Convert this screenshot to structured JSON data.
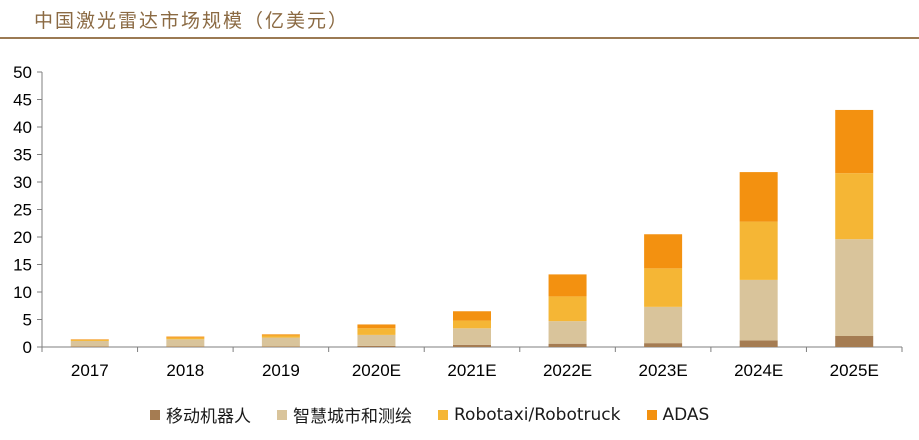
{
  "header": {
    "title": "中国激光雷达市场规模（亿美元）"
  },
  "colors": {
    "header_text": "#8b6a43",
    "header_rule": "#9b7a53",
    "axis": "#7f7f7f"
  },
  "chart_data": {
    "type": "bar",
    "stacked": true,
    "title": "中国激光雷达市场规模（亿美元）",
    "xlabel": "",
    "ylabel": "",
    "ylim": [
      0,
      50
    ],
    "yticks": [
      0,
      5,
      10,
      15,
      20,
      25,
      30,
      35,
      40,
      45,
      50
    ],
    "grid": false,
    "legend_position": "bottom",
    "categories": [
      "2017",
      "2018",
      "2019",
      "2020E",
      "2021E",
      "2022E",
      "2023E",
      "2024E",
      "2025E"
    ],
    "series": [
      {
        "name": "移动机器人",
        "color": "#a57c52",
        "values": [
          0.1,
          0.1,
          0.1,
          0.2,
          0.4,
          0.6,
          0.7,
          1.2,
          2.0
        ]
      },
      {
        "name": "智慧城市和测绘",
        "color": "#d9c49b",
        "values": [
          1.0,
          1.3,
          1.6,
          2.0,
          3.0,
          4.1,
          6.6,
          11.0,
          17.6
        ]
      },
      {
        "name": "Robotaxi/Robotruck",
        "color": "#f5b635",
        "values": [
          0.2,
          0.3,
          0.4,
          1.2,
          1.4,
          4.5,
          7.0,
          10.6,
          12.0
        ]
      },
      {
        "name": "ADAS",
        "color": "#f39110",
        "values": [
          0.1,
          0.2,
          0.2,
          0.7,
          1.7,
          4.0,
          6.2,
          9.0,
          11.5
        ]
      }
    ]
  }
}
